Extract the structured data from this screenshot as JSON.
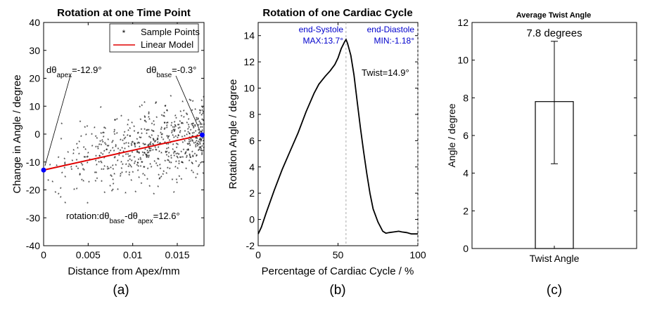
{
  "chart_data": [
    {
      "type": "scatter",
      "title": "Rotation at one Time Point",
      "xlabel": "Distance from Apex/mm",
      "ylabel": "Change in Angle / degree",
      "panel_label": "(a)",
      "xlim": [
        0,
        0.018
      ],
      "ylim": [
        -40,
        40
      ],
      "xticks": [
        0,
        0.005,
        0.01,
        0.015
      ],
      "xtick_labels": [
        "0",
        "0.005",
        "0.01",
        "0.015"
      ],
      "yticks": [
        -40,
        -30,
        -20,
        -10,
        0,
        10,
        20,
        30,
        40
      ],
      "ytick_labels": [
        "-40",
        "-30",
        "-20",
        "-10",
        "0",
        "10",
        "20",
        "30",
        "40"
      ],
      "legend": {
        "position": "top-right",
        "entries": [
          "Sample Points",
          "Linear Model"
        ]
      },
      "series": [
        {
          "name": "Sample Points",
          "kind": "scatter",
          "color": "#000000",
          "n_points": 620,
          "x_range": [
            0,
            0.018
          ],
          "model_slope": 700,
          "model_intercept": -12.9,
          "y_spread": 7
        },
        {
          "name": "Linear Model",
          "kind": "line",
          "color": "#e00000",
          "x": [
            0,
            0.0178
          ],
          "y": [
            -12.9,
            -0.3
          ]
        }
      ],
      "endpoints": {
        "color": "#0000ff",
        "points": [
          {
            "x": 0,
            "y": -12.9
          },
          {
            "x": 0.0178,
            "y": -0.3
          }
        ]
      },
      "annotations": {
        "apex": {
          "prefix": "dθ",
          "sub": "apex",
          "suffix": "=-12.9°"
        },
        "base": {
          "prefix": "dθ",
          "sub": "base",
          "suffix": "=-0.3°"
        },
        "rotation": {
          "prefix": "rotation:dθ",
          "sub1": "base",
          "mid": "-dθ",
          "sub2": "apex",
          "suffix": "=12.6°"
        }
      }
    },
    {
      "type": "line",
      "title": "Rotation of one Cardiac Cycle",
      "xlabel": "Percentage of Cardiac Cycle / %",
      "ylabel": "Rotation Angle / degree",
      "panel_label": "(b)",
      "xlim": [
        0,
        100
      ],
      "ylim": [
        -2,
        15
      ],
      "xticks": [
        0,
        50,
        100
      ],
      "xtick_labels": [
        "0",
        "50",
        "100"
      ],
      "yticks": [
        -2,
        0,
        2,
        4,
        6,
        8,
        10,
        12,
        14
      ],
      "ytick_labels": [
        "-2",
        "0",
        "2",
        "4",
        "6",
        "8",
        "10",
        "12",
        "14"
      ],
      "series": [
        {
          "color": "#000000",
          "x": [
            0,
            2,
            5,
            10,
            15,
            20,
            25,
            30,
            35,
            38,
            40,
            42,
            45,
            48,
            50,
            52,
            54,
            55,
            56,
            58,
            60,
            62,
            64,
            66,
            68,
            70,
            72,
            75,
            78,
            80,
            82,
            85,
            88,
            90,
            93,
            96,
            100
          ],
          "y": [
            -1.1,
            -0.6,
            0.5,
            2.2,
            3.8,
            5.2,
            6.6,
            8.2,
            9.6,
            10.3,
            10.6,
            10.9,
            11.3,
            11.8,
            12.3,
            13.0,
            13.5,
            13.7,
            13.4,
            12.5,
            11.0,
            9.0,
            7.0,
            5.2,
            3.5,
            2.0,
            0.8,
            -0.2,
            -0.9,
            -1.05,
            -1.0,
            -0.95,
            -0.9,
            -0.95,
            -1.0,
            -1.1,
            -1.1
          ]
        }
      ],
      "vlines": [
        {
          "x": 55,
          "color": "#aaaaaa"
        },
        {
          "x": 100,
          "color": "#aaaaaa"
        }
      ],
      "annotations": {
        "systole_label": "end-Systole",
        "systole_value": "MAX:13.7°",
        "diastole_label": "end-Diastole",
        "diastole_value": "MIN:-1.18°",
        "twist": "Twist=14.9°",
        "label_color": "#0000cc"
      }
    },
    {
      "type": "bar",
      "title": "Average Twist Angle",
      "xlabel": "",
      "ylabel": "Angle / degree",
      "panel_label": "(c)",
      "categories": [
        "Twist Angle"
      ],
      "values": [
        7.8
      ],
      "error": {
        "lower": 4.5,
        "upper": 11.0
      },
      "ylim": [
        0,
        12
      ],
      "yticks": [
        0,
        2,
        4,
        6,
        8,
        10,
        12
      ],
      "ytick_labels": [
        "0",
        "2",
        "4",
        "6",
        "8",
        "10",
        "12"
      ],
      "value_label": "7.8 degrees"
    }
  ]
}
